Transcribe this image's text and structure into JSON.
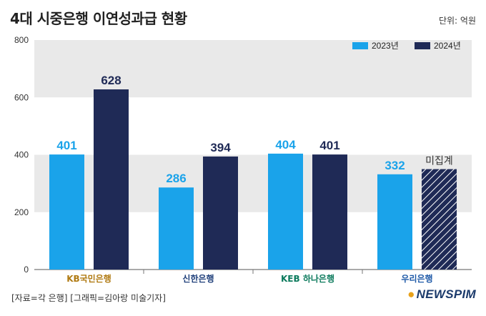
{
  "header": {
    "title": "4대 시중은행 이연성과급 현황",
    "unit": "단위: 억원"
  },
  "footer": {
    "source": "[자료=각 은행] [그래픽=김아랑 미술기자]",
    "brand": "NEWSPIM"
  },
  "chart_data": {
    "type": "bar",
    "categories": [
      "KB국민은행",
      "신한은행",
      "KEB 하나은행",
      "우리은행"
    ],
    "series": [
      {
        "name": "2023년",
        "color": "#1aa3ea",
        "values": [
          401,
          286,
          404,
          332
        ]
      },
      {
        "name": "2024년",
        "color": "#1f2a56",
        "values": [
          628,
          394,
          401,
          350
        ]
      }
    ],
    "data_labels": [
      [
        "401",
        "286",
        "404",
        "332"
      ],
      [
        "628",
        "394",
        "401",
        "미집계"
      ]
    ],
    "hatched": [
      [
        false,
        false,
        false,
        false
      ],
      [
        false,
        false,
        false,
        true
      ]
    ],
    "ylim": [
      0,
      800
    ],
    "yticks": [
      "0",
      "200",
      "400",
      "600",
      "800"
    ],
    "band_color": "#e9e9e9",
    "legend_position": "top-right"
  }
}
